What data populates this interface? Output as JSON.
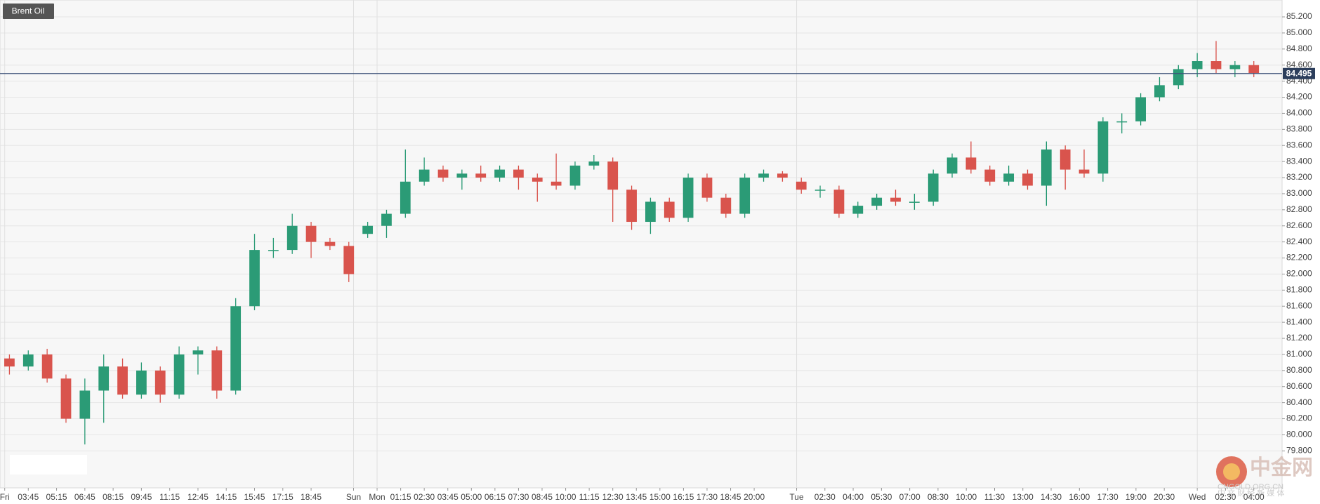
{
  "chart_data": {
    "type": "candlestick",
    "title": "Brent Oil",
    "x": [
      2,
      6,
      10,
      14,
      18,
      22,
      26,
      30,
      34,
      38,
      42,
      46,
      50,
      54,
      58,
      62,
      66,
      70,
      74,
      78,
      82,
      86,
      90,
      94,
      98,
      102,
      106,
      110,
      114,
      118,
      122,
      126,
      130,
      134,
      138,
      142,
      146,
      150,
      154,
      158,
      162,
      166,
      170,
      174,
      178,
      182,
      186,
      190,
      194,
      198,
      202,
      206,
      210,
      214,
      218,
      222,
      226,
      230,
      234,
      238,
      242,
      246,
      250,
      254,
      258,
      262,
      266
    ],
    "open": [
      80.95,
      80.85,
      81.0,
      80.7,
      80.2,
      80.55,
      80.85,
      80.5,
      80.8,
      80.5,
      81.0,
      81.05,
      80.55,
      81.6,
      82.3,
      82.3,
      82.6,
      82.4,
      82.35,
      82.5,
      82.6,
      82.75,
      83.15,
      83.3,
      83.2,
      83.25,
      83.2,
      83.3,
      83.2,
      83.15,
      83.1,
      83.35,
      83.4,
      83.05,
      82.65,
      82.9,
      82.7,
      83.2,
      82.95,
      82.75,
      83.2,
      83.25,
      83.15,
      83.05,
      83.05,
      82.75,
      82.85,
      82.95,
      82.9,
      82.9,
      83.25,
      83.45,
      83.3,
      83.15,
      83.25,
      83.1,
      83.55,
      83.3,
      83.25,
      83.9,
      83.9,
      84.2,
      84.35,
      84.55,
      84.65,
      84.55,
      84.6
    ],
    "high": [
      81.0,
      81.05,
      81.07,
      80.75,
      80.7,
      81.0,
      80.95,
      80.9,
      80.85,
      81.1,
      81.1,
      81.1,
      81.7,
      82.5,
      82.45,
      82.75,
      82.65,
      82.45,
      82.4,
      82.65,
      82.8,
      83.55,
      83.45,
      83.35,
      83.3,
      83.35,
      83.35,
      83.35,
      83.25,
      83.5,
      83.4,
      83.48,
      83.45,
      83.1,
      82.95,
      82.95,
      83.25,
      83.25,
      83.0,
      83.25,
      83.3,
      83.28,
      83.2,
      83.1,
      83.1,
      82.9,
      83.0,
      83.05,
      83.0,
      83.3,
      83.5,
      83.65,
      83.35,
      83.35,
      83.3,
      83.65,
      83.6,
      83.55,
      83.95,
      84.0,
      84.25,
      84.45,
      84.6,
      84.75,
      84.9,
      84.65,
      84.65
    ],
    "low": [
      80.75,
      80.8,
      80.65,
      80.15,
      79.88,
      80.15,
      80.45,
      80.45,
      80.4,
      80.45,
      80.75,
      80.45,
      80.5,
      81.55,
      82.2,
      82.25,
      82.2,
      82.3,
      81.9,
      82.45,
      82.45,
      82.7,
      83.1,
      83.15,
      83.05,
      83.15,
      83.15,
      83.05,
      82.9,
      83.05,
      83.05,
      83.3,
      82.65,
      82.55,
      82.5,
      82.65,
      82.65,
      82.9,
      82.7,
      82.7,
      83.15,
      83.15,
      83.0,
      82.95,
      82.7,
      82.7,
      82.8,
      82.85,
      82.8,
      82.85,
      83.2,
      83.25,
      83.1,
      83.1,
      83.05,
      82.85,
      83.05,
      83.2,
      83.15,
      83.75,
      83.85,
      84.15,
      84.3,
      84.45,
      84.5,
      84.45,
      84.45
    ],
    "close": [
      80.85,
      81.0,
      80.7,
      80.2,
      80.55,
      80.85,
      80.5,
      80.8,
      80.5,
      81.0,
      81.05,
      80.55,
      81.6,
      82.3,
      82.3,
      82.6,
      82.4,
      82.35,
      82.0,
      82.6,
      82.75,
      83.15,
      83.3,
      83.2,
      83.25,
      83.2,
      83.3,
      83.2,
      83.15,
      83.1,
      83.35,
      83.4,
      83.05,
      82.65,
      82.9,
      82.7,
      83.2,
      82.95,
      82.75,
      83.2,
      83.25,
      83.2,
      83.05,
      83.05,
      82.75,
      82.85,
      82.95,
      82.9,
      82.9,
      83.25,
      83.45,
      83.3,
      83.15,
      83.25,
      83.1,
      83.55,
      83.3,
      83.25,
      83.9,
      83.9,
      84.2,
      84.35,
      84.55,
      84.65,
      84.55,
      84.6,
      84.5
    ],
    "up_color": "#2b9b76",
    "down_color": "#d9544d",
    "xlim": [
      0,
      272
    ],
    "xticks": [
      {
        "value": 1,
        "label": "Fri"
      },
      {
        "value": 6,
        "label": "03:45"
      },
      {
        "value": 12,
        "label": "05:15"
      },
      {
        "value": 18,
        "label": "06:45"
      },
      {
        "value": 24,
        "label": "08:15"
      },
      {
        "value": 30,
        "label": "09:45"
      },
      {
        "value": 36,
        "label": "11:15"
      },
      {
        "value": 42,
        "label": "12:45"
      },
      {
        "value": 48,
        "label": "14:15"
      },
      {
        "value": 54,
        "label": "15:45"
      },
      {
        "value": 60,
        "label": "17:15"
      },
      {
        "value": 66,
        "label": "18:45"
      },
      {
        "value": 75,
        "label": "Sun"
      },
      {
        "value": 80,
        "label": "Mon"
      },
      {
        "value": 85,
        "label": "01:15"
      },
      {
        "value": 90,
        "label": "02:30"
      },
      {
        "value": 95,
        "label": "03:45"
      },
      {
        "value": 100,
        "label": "05:00"
      },
      {
        "value": 105,
        "label": "06:15"
      },
      {
        "value": 110,
        "label": "07:30"
      },
      {
        "value": 115,
        "label": "08:45"
      },
      {
        "value": 120,
        "label": "10:00"
      },
      {
        "value": 125,
        "label": "11:15"
      },
      {
        "value": 130,
        "label": "12:30"
      },
      {
        "value": 135,
        "label": "13:45"
      },
      {
        "value": 140,
        "label": "15:00"
      },
      {
        "value": 145,
        "label": "16:15"
      },
      {
        "value": 150,
        "label": "17:30"
      },
      {
        "value": 155,
        "label": "18:45"
      },
      {
        "value": 160,
        "label": "20:00"
      },
      {
        "value": 169,
        "label": "Tue"
      },
      {
        "value": 175,
        "label": "02:30"
      },
      {
        "value": 181,
        "label": "04:00"
      },
      {
        "value": 187,
        "label": "05:30"
      },
      {
        "value": 193,
        "label": "07:00"
      },
      {
        "value": 199,
        "label": "08:30"
      },
      {
        "value": 205,
        "label": "10:00"
      },
      {
        "value": 211,
        "label": "11:30"
      },
      {
        "value": 217,
        "label": "13:00"
      },
      {
        "value": 223,
        "label": "14:30"
      },
      {
        "value": 229,
        "label": "16:00"
      },
      {
        "value": 235,
        "label": "17:30"
      },
      {
        "value": 241,
        "label": "19:00"
      },
      {
        "value": 247,
        "label": "20:30"
      },
      {
        "value": 254,
        "label": "Wed"
      },
      {
        "value": 260,
        "label": "02:30"
      },
      {
        "value": 266,
        "label": "04:00"
      }
    ],
    "ylim": [
      79.34,
      85.41
    ],
    "yticks": [
      {
        "value": 79.8,
        "label": "79.800"
      },
      {
        "value": 80,
        "label": "80.000"
      },
      {
        "value": 80.2,
        "label": "80.200"
      },
      {
        "value": 80.4,
        "label": "80.400"
      },
      {
        "value": 80.6,
        "label": "80.600"
      },
      {
        "value": 80.8,
        "label": "80.800"
      },
      {
        "value": 81,
        "label": "81.000"
      },
      {
        "value": 81.2,
        "label": "81.200"
      },
      {
        "value": 81.4,
        "label": "81.400"
      },
      {
        "value": 81.6,
        "label": "81.600"
      },
      {
        "value": 81.8,
        "label": "81.800"
      },
      {
        "value": 82,
        "label": "82.000"
      },
      {
        "value": 82.2,
        "label": "82.200"
      },
      {
        "value": 82.4,
        "label": "82.400"
      },
      {
        "value": 82.6,
        "label": "82.600"
      },
      {
        "value": 82.8,
        "label": "82.800"
      },
      {
        "value": 83,
        "label": "83.000"
      },
      {
        "value": 83.2,
        "label": "83.200"
      },
      {
        "value": 83.4,
        "label": "83.400"
      },
      {
        "value": 83.6,
        "label": "83.600"
      },
      {
        "value": 83.8,
        "label": "83.800"
      },
      {
        "value": 84,
        "label": "84.000"
      },
      {
        "value": 84.2,
        "label": "84.200"
      },
      {
        "value": 84.4,
        "label": "84.400"
      },
      {
        "value": 84.6,
        "label": "84.600"
      },
      {
        "value": 84.8,
        "label": "84.800"
      },
      {
        "value": 85,
        "label": "85.000"
      },
      {
        "value": 85.2,
        "label": "85.200"
      }
    ],
    "grid": true,
    "last_price": 84.495,
    "watermark": {
      "name": "中金网",
      "url": "CNGOLD.ORG.CN",
      "slogan": "中 文 财 经 新 媒 体"
    }
  }
}
